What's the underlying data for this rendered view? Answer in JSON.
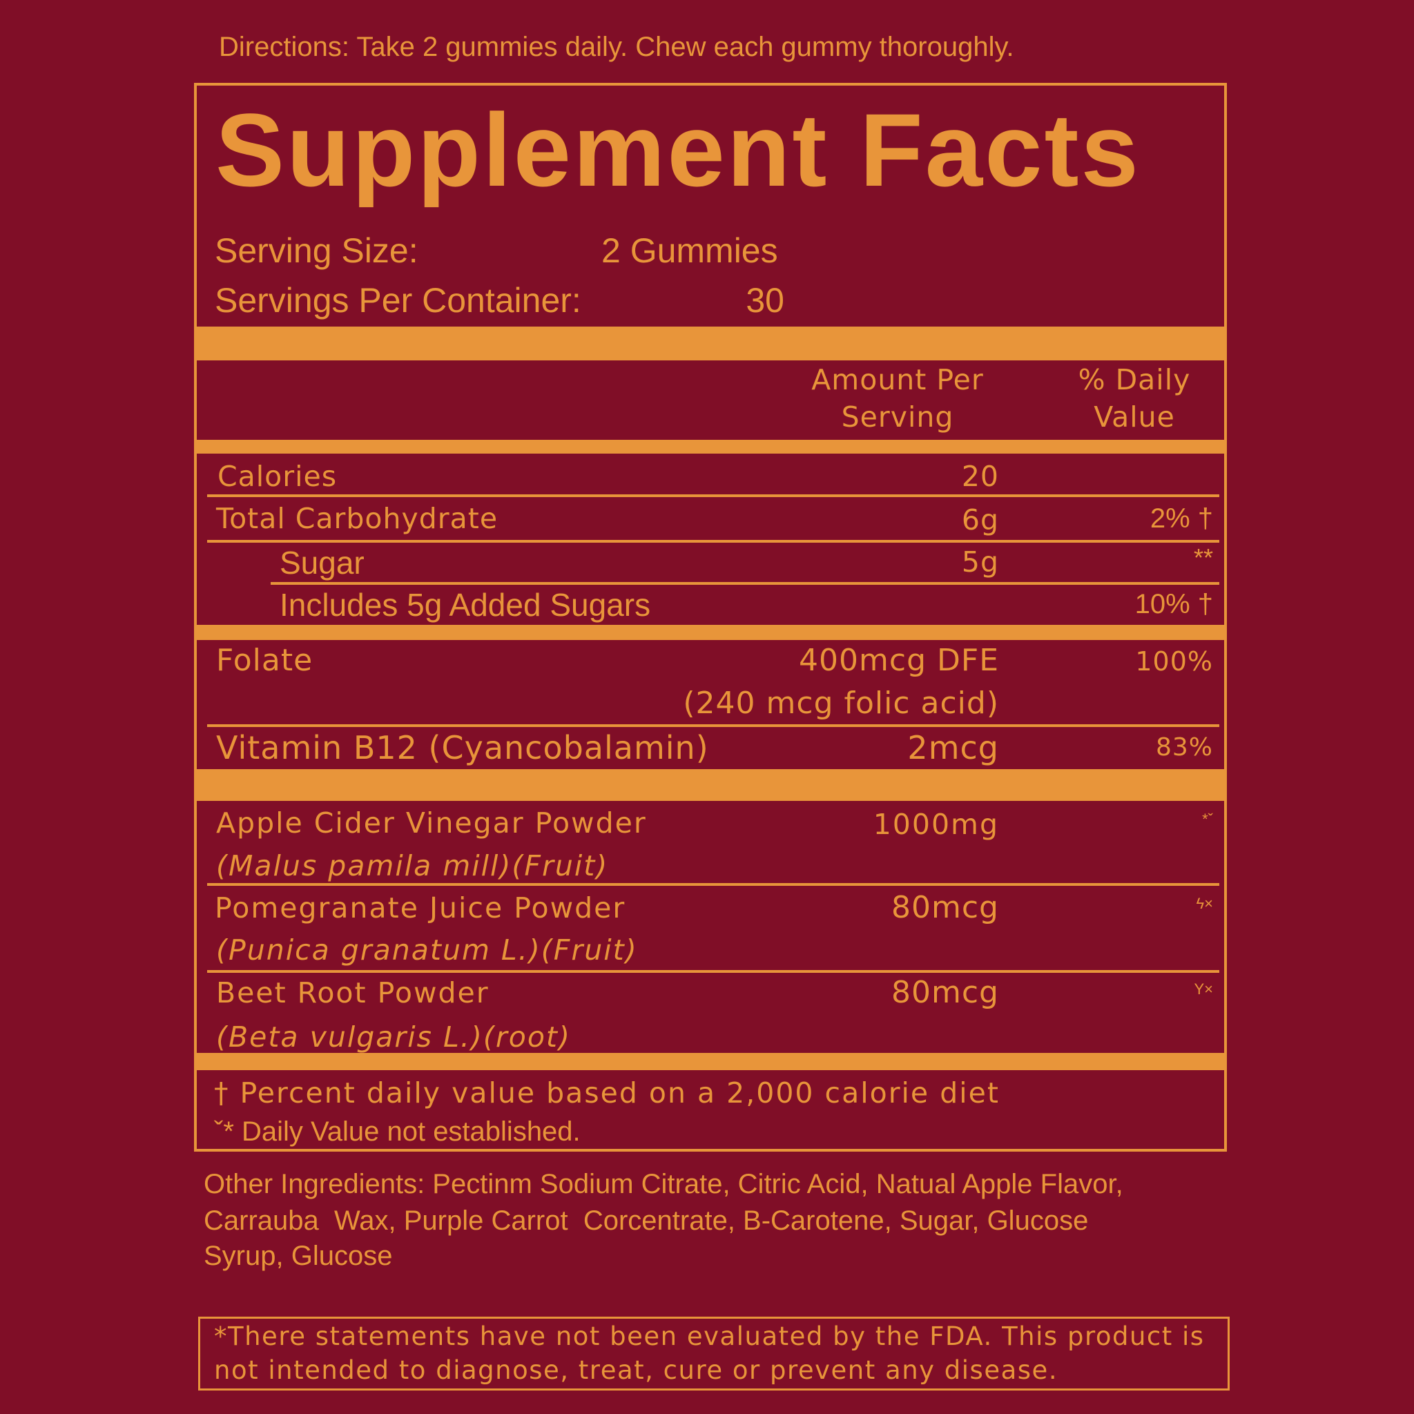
{
  "colors": {
    "background": "#800e27",
    "accent": "#e8953a"
  },
  "directions": "Directions: Take 2 gummies daily. Chew each gummy thoroughly.",
  "title": "Supplement Facts",
  "serving_size": {
    "label": "Serving Size:",
    "value": "2 Gummies"
  },
  "servings_per_container": {
    "label": "Servings Per Container:",
    "value": "30"
  },
  "header": {
    "amount_line1": "Amount Per",
    "amount_line2": "Serving",
    "dv_line1": "% Daily",
    "dv_line2": "Value"
  },
  "rows": [
    {
      "name": "Calories",
      "amount": "20",
      "dv": ""
    },
    {
      "name": "Total Carbohydrate",
      "amount": "6g",
      "dv": "2% †"
    },
    {
      "name": "Sugar",
      "amount": "5g",
      "dv": "**"
    },
    {
      "name": "Includes 5g Added Sugars",
      "amount": "",
      "dv": "10% †"
    },
    {
      "name": "Folate",
      "amount": "400mcg DFE",
      "amount2": "(240 mcg folic acid)",
      "dv": "100%"
    },
    {
      "name": "Vitamin B12 (Cyancobalamin)",
      "amount": "2mcg",
      "dv": "83%"
    },
    {
      "name": "Apple Cider Vinegar Powder",
      "latin": "(Malus pamila mill)(Fruit)",
      "amount": "1000mg",
      "dv": "*ˇ"
    },
    {
      "name": "Pomegranate Juice Powder",
      "latin": "(Punica granatum L.)(Fruit)",
      "amount": "80mcg",
      "dv": "ϟ×"
    },
    {
      "name": "Beet Root Powder",
      "latin": "(Beta vulgaris L.)(root)",
      "amount": "80mcg",
      "dv": "Y×"
    }
  ],
  "footnotes": [
    "† Percent daily value based on a 2,000 calorie diet",
    "ˇ* Daily Value not established."
  ],
  "other_ingredients": [
    "Other Ingredients: Pectinm Sodium Citrate, Citric Acid, Natual Apple Flavor,",
    "Carrauba  Wax, Purple Carrot  Corcentrate, B-Carotene, Sugar, Glucose",
    "Syrup, Glucose"
  ],
  "disclaimer": [
    "*There statements have not been evaluated by the FDA. This product is",
    "not intended to diagnose, treat, cure or prevent any disease."
  ]
}
